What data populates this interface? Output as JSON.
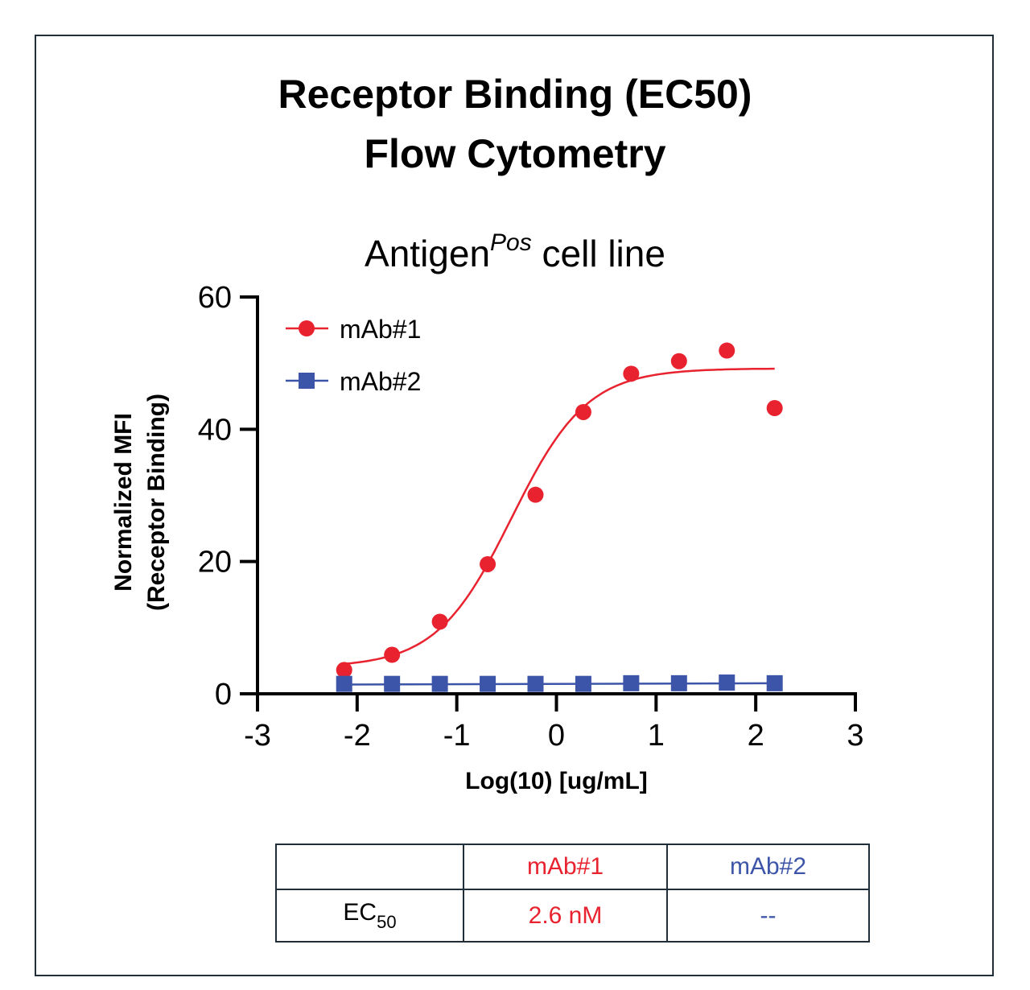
{
  "title_line1": "Receptor Binding (EC50)",
  "title_line2": "Flow Cytometry",
  "subtitle": {
    "main": "Antigen",
    "sup": "Pos",
    "rest": " cell line"
  },
  "chart_data": {
    "type": "scatter",
    "xlabel": "Log(10) [ug/mL]",
    "ylabel_line1": "Normalized MFI",
    "ylabel_line2": "(Receptor Binding)",
    "xlim": [
      -3,
      3
    ],
    "ylim": [
      0,
      60
    ],
    "xticks": [
      -3,
      -2,
      -1,
      0,
      1,
      2,
      3
    ],
    "yticks": [
      0,
      20,
      40,
      60
    ],
    "legend_position": "top-left",
    "series": [
      {
        "name": "mAb#1",
        "color": "#e8222e",
        "marker": "circle",
        "x": [
          -2.13,
          -1.65,
          -1.17,
          -0.69,
          -0.21,
          0.27,
          0.75,
          1.23,
          1.71,
          2.19
        ],
        "y": [
          3.6,
          5.9,
          10.9,
          19.6,
          30.1,
          42.6,
          48.4,
          50.3,
          51.9,
          43.2
        ],
        "fit": {
          "bottom": 4.0,
          "top": 49.2,
          "logEC50": -0.45,
          "hill": 1.15,
          "x_range": [
            -2.13,
            2.19
          ]
        }
      },
      {
        "name": "mAb#2",
        "color": "#3d55a8",
        "marker": "square",
        "x": [
          -2.13,
          -1.65,
          -1.17,
          -0.69,
          -0.21,
          0.27,
          0.75,
          1.23,
          1.71,
          2.19
        ],
        "y": [
          1.5,
          1.5,
          1.5,
          1.5,
          1.5,
          1.5,
          1.6,
          1.6,
          1.7,
          1.6
        ],
        "fit": {
          "line": [
            1.4,
            1.6
          ],
          "x_range": [
            -2.13,
            2.19
          ]
        }
      }
    ]
  },
  "table": {
    "header": [
      "",
      "mAb#1",
      "mAb#2"
    ],
    "row_label_main": "EC",
    "row_label_sub": "50",
    "values": [
      "2.6 nM",
      "--"
    ]
  }
}
